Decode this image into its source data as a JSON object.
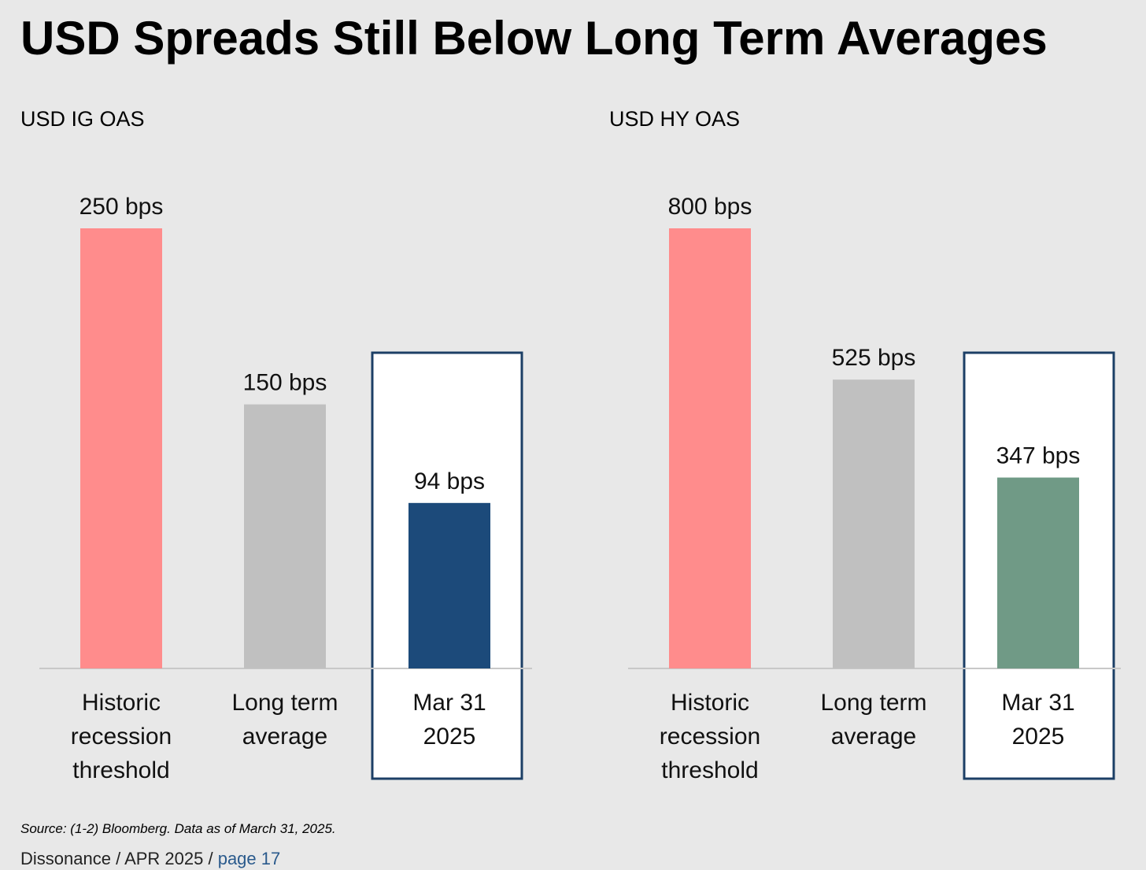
{
  "header": {
    "title": "USD Spreads Still Below Long Term Averages"
  },
  "chart_data": [
    {
      "type": "bar",
      "title": "USD IG OAS",
      "categories": [
        [
          "Historic",
          "recession",
          "threshold"
        ],
        [
          "Long term",
          "average"
        ],
        [
          "Mar 31",
          "2025"
        ]
      ],
      "values": [
        250,
        150,
        94
      ],
      "data_labels": [
        "250 bps",
        "150 bps",
        "94 bps"
      ],
      "colors": [
        "#ff8c8c",
        "#c0c0c0",
        "#1c4a7a"
      ],
      "highlight_index": 2,
      "ylim": [
        0,
        250
      ],
      "grid": false
    },
    {
      "type": "bar",
      "title": "USD HY OAS",
      "categories": [
        [
          "Historic",
          "recession",
          "threshold"
        ],
        [
          "Long term",
          "average"
        ],
        [
          "Mar 31",
          "2025"
        ]
      ],
      "values": [
        800,
        525,
        347
      ],
      "data_labels": [
        "800 bps",
        "525 bps",
        "347 bps"
      ],
      "colors": [
        "#ff8c8c",
        "#c0c0c0",
        "#709a86"
      ],
      "highlight_index": 2,
      "ylim": [
        0,
        800
      ],
      "grid": false
    }
  ],
  "footer": {
    "source": "Source: (1-2) Bloomberg. Data as of March 31, 2025.",
    "publication": "Dissonance / APR 2025 / ",
    "page": "page 17"
  },
  "colors": {
    "background": "#e8e8e8",
    "highlight_border": "#1c3f66",
    "baseline": "#c8c8c8"
  }
}
